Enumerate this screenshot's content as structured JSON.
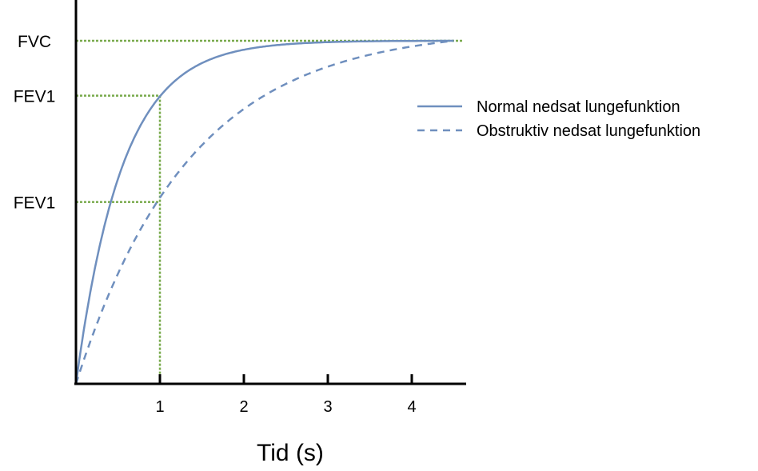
{
  "chart_data": {
    "type": "line",
    "title": "",
    "xlabel": "Tid (s)",
    "ylabel": "",
    "xlim": [
      0,
      4.6
    ],
    "xticks": [
      1,
      2,
      3,
      4
    ],
    "ylim": [
      0,
      1
    ],
    "y_markers": [
      {
        "label": "FVC",
        "y": 1.0
      },
      {
        "label": "FEV1",
        "y": 0.84
      },
      {
        "label": "FEV1",
        "y": 0.53
      }
    ],
    "reference_x": 1,
    "series": [
      {
        "name": "Normal nedsat lungefunktion",
        "style": "solid",
        "color": "#6f8fbe",
        "time_constant": 0.55,
        "fev1_fraction": 0.84,
        "reaches_fvc_at": 3.0
      },
      {
        "name": "Obstruktiv nedsat lungefunktion",
        "style": "dashed",
        "color": "#6f8fbe",
        "time_constant": 1.35,
        "fev1_fraction": 0.53,
        "reaches_fvc_at": 4.5
      }
    ],
    "guide_color": "#7aab4e",
    "legend_position": "right",
    "grid": false
  }
}
